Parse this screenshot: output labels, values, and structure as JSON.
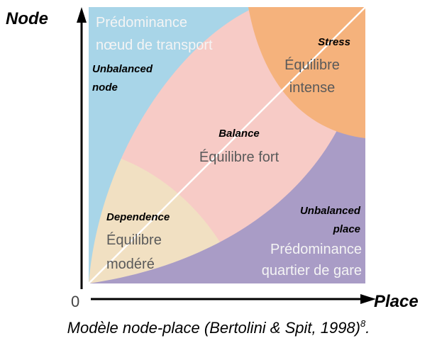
{
  "axes": {
    "y": "Node",
    "x": "Place",
    "origin": "0"
  },
  "regions": [
    {
      "english": [
        "Unbalanced",
        "node"
      ],
      "french": [
        "Prédominance",
        "nœud de transport"
      ]
    },
    {
      "english": [
        "Stress"
      ],
      "french": [
        "Équilibre",
        "intense"
      ]
    },
    {
      "english": [
        "Balance"
      ],
      "french": [
        "Équilibre fort"
      ]
    },
    {
      "english": [
        "Dependence"
      ],
      "french": [
        "Équilibre",
        "modéré"
      ]
    },
    {
      "english": [
        "Unbalanced",
        "place"
      ],
      "french": [
        "Prédominance",
        "quartier de gare"
      ]
    }
  ],
  "caption": {
    "text": "Modèle node-place (Bertolini & Spit, 1998)",
    "note": "8",
    "end": "."
  }
}
